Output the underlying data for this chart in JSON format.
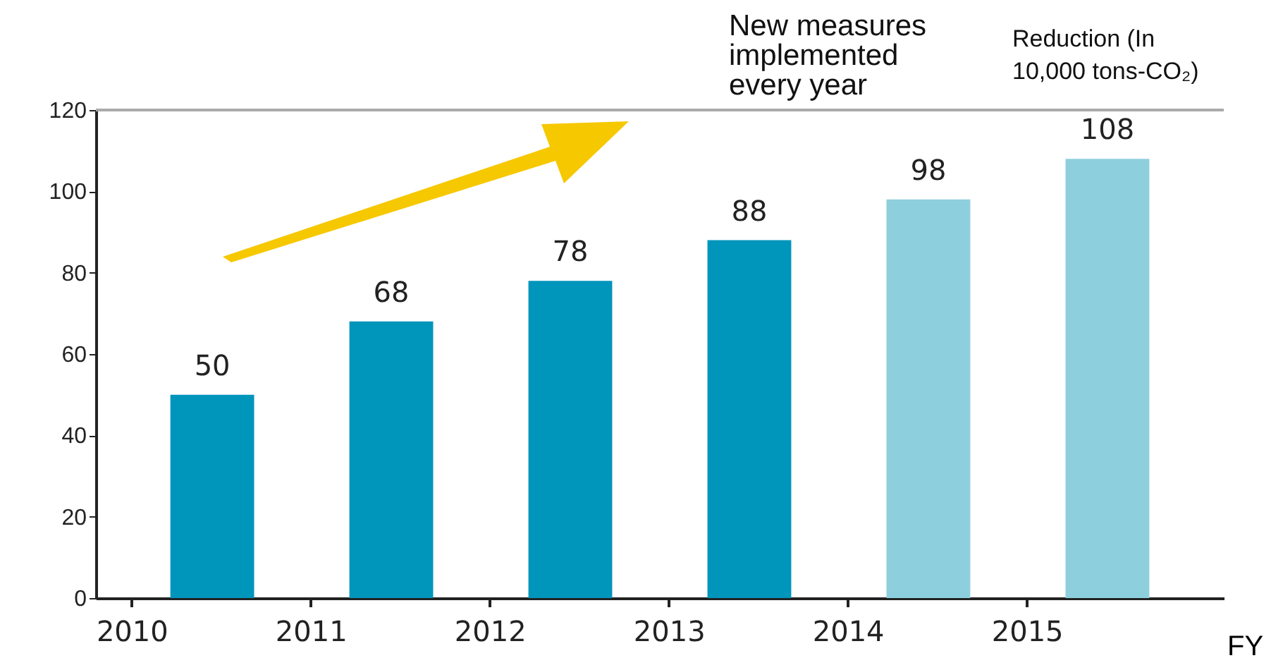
{
  "chart_data": {
    "type": "bar",
    "ylabel": "Reduction (In 10,000 tons-CO₂)",
    "xlabel": "FY",
    "annotations": [
      "New measures implemented every year"
    ],
    "categories": [
      "2010",
      "2011",
      "2012",
      "2013",
      "2014",
      "2015"
    ],
    "values": [
      50,
      68,
      78,
      88,
      98,
      108
    ],
    "colors": [
      "#0095bb",
      "#0095bb",
      "#0095bb",
      "#0095bb",
      "#8dcfdd",
      "#8dcfdd"
    ],
    "data_labels": true,
    "ylim": [
      0,
      120
    ],
    "yticks": [
      0,
      20,
      40,
      60,
      80,
      100,
      120
    ],
    "ref_lines": [
      {
        "axis": "y",
        "value": 120,
        "color": "#aaaaaa"
      }
    ],
    "grid": false
  }
}
